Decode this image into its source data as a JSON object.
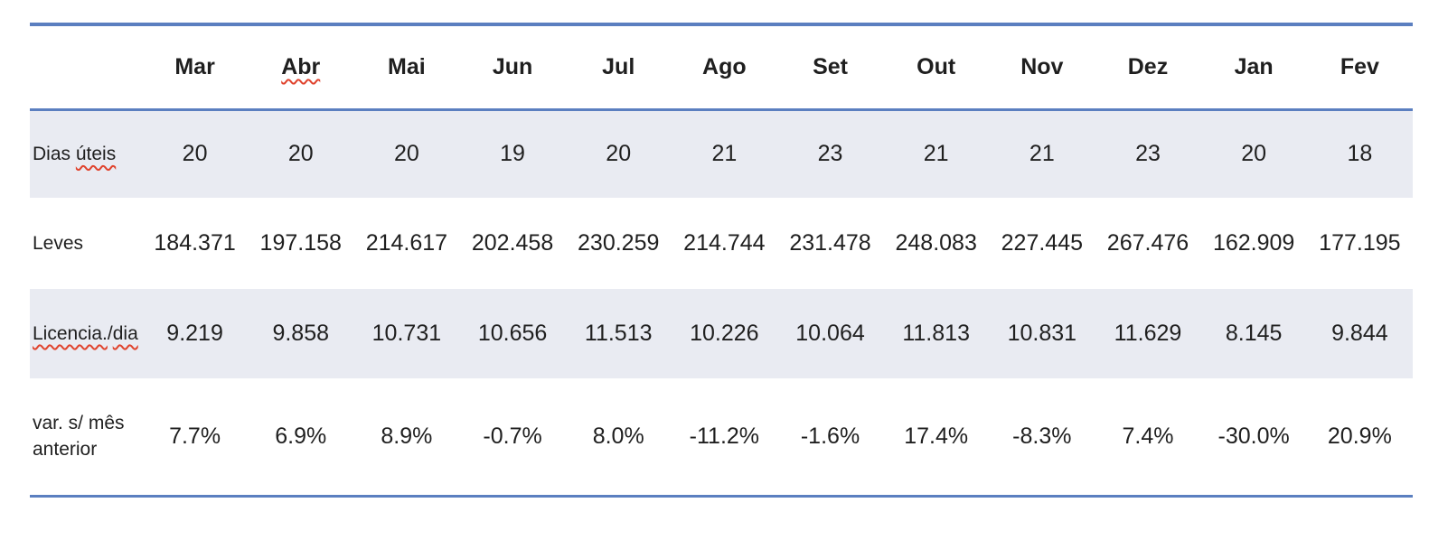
{
  "table": {
    "columns": [
      "Mar",
      "Abr",
      "Mai",
      "Jun",
      "Jul",
      "Ago",
      "Set",
      "Out",
      "Nov",
      "Dez",
      "Jan",
      "Fev"
    ],
    "rows": [
      {
        "label": "Dias úteis",
        "label_parts": [
          {
            "t": "Dias ",
            "misspelled": false
          },
          {
            "t": "úteis",
            "misspelled": true
          }
        ],
        "values": [
          "20",
          "20",
          "20",
          "19",
          "20",
          "21",
          "23",
          "21",
          "21",
          "23",
          "20",
          "18"
        ],
        "shaded": true
      },
      {
        "label": "Leves",
        "label_parts": [
          {
            "t": "Leves",
            "misspelled": false
          }
        ],
        "values": [
          "184.371",
          "197.158",
          "214.617",
          "202.458",
          "230.259",
          "214.744",
          "231.478",
          "248.083",
          "227.445",
          "267.476",
          "162.909",
          "177.195"
        ],
        "shaded": false
      },
      {
        "label": "Licencia./dia",
        "label_parts": [
          {
            "t": "Licencia.",
            "misspelled": true
          },
          {
            "t": "/",
            "misspelled": false
          },
          {
            "t": "dia",
            "misspelled": true
          }
        ],
        "values": [
          "9.219",
          "9.858",
          "10.731",
          "10.656",
          "11.513",
          "10.226",
          "10.064",
          "11.813",
          "10.831",
          "11.629",
          "8.145",
          "9.844"
        ],
        "shaded": true
      },
      {
        "label": "var. s/ mês anterior",
        "label_parts": [
          {
            "t": "var. s/ mês anterior",
            "misspelled": false
          }
        ],
        "values": [
          "7.7%",
          "6.9%",
          "8.9%",
          "-0.7%",
          "8.0%",
          "-11.2%",
          "-1.6%",
          "17.4%",
          "-8.3%",
          "7.4%",
          "-30.0%",
          "20.9%"
        ],
        "shaded": false
      }
    ]
  },
  "colors": {
    "accent_line": "#5b7fc0",
    "band_fill": "#e9ebf2",
    "text_color": "#1f1f1f",
    "spellcheck_color": "#e0432d"
  }
}
